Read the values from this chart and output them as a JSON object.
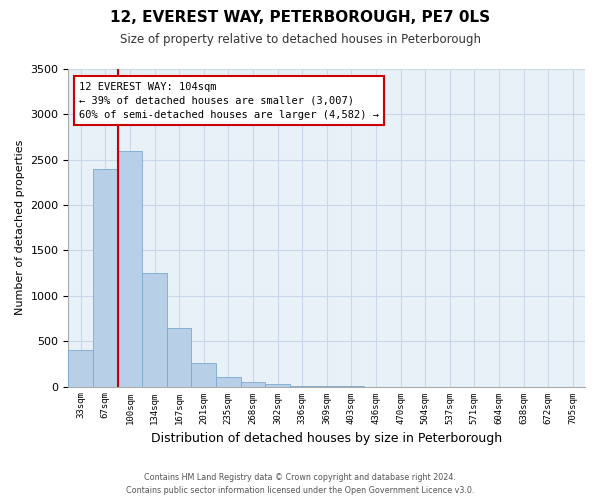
{
  "title": "12, EVEREST WAY, PETERBOROUGH, PE7 0LS",
  "subtitle": "Size of property relative to detached houses in Peterborough",
  "xlabel": "Distribution of detached houses by size in Peterborough",
  "ylabel": "Number of detached properties",
  "bar_color": "#b8cfe8",
  "bar_edge_color": "#7aaacf",
  "grid_color": "#c8d8e8",
  "background_color": "#e8f0f8",
  "ylim": [
    0,
    3500
  ],
  "yticks": [
    0,
    500,
    1000,
    1500,
    2000,
    2500,
    3000,
    3500
  ],
  "categories": [
    "33sqm",
    "67sqm",
    "100sqm",
    "134sqm",
    "167sqm",
    "201sqm",
    "235sqm",
    "268sqm",
    "302sqm",
    "336sqm",
    "369sqm",
    "403sqm",
    "436sqm",
    "470sqm",
    "504sqm",
    "537sqm",
    "571sqm",
    "604sqm",
    "638sqm",
    "672sqm",
    "705sqm"
  ],
  "values": [
    400,
    2400,
    2600,
    1250,
    640,
    260,
    100,
    55,
    30,
    10,
    5,
    2,
    0,
    0,
    0,
    0,
    0,
    0,
    0,
    0,
    0
  ],
  "marker_bin_index": 2,
  "marker_label": "12 EVEREST WAY: 104sqm",
  "annotation_line1": "← 39% of detached houses are smaller (3,007)",
  "annotation_line2": "60% of semi-detached houses are larger (4,582) →",
  "marker_line_color": "#cc0000",
  "footer_line1": "Contains HM Land Registry data © Crown copyright and database right 2024.",
  "footer_line2": "Contains public sector information licensed under the Open Government Licence v3.0."
}
